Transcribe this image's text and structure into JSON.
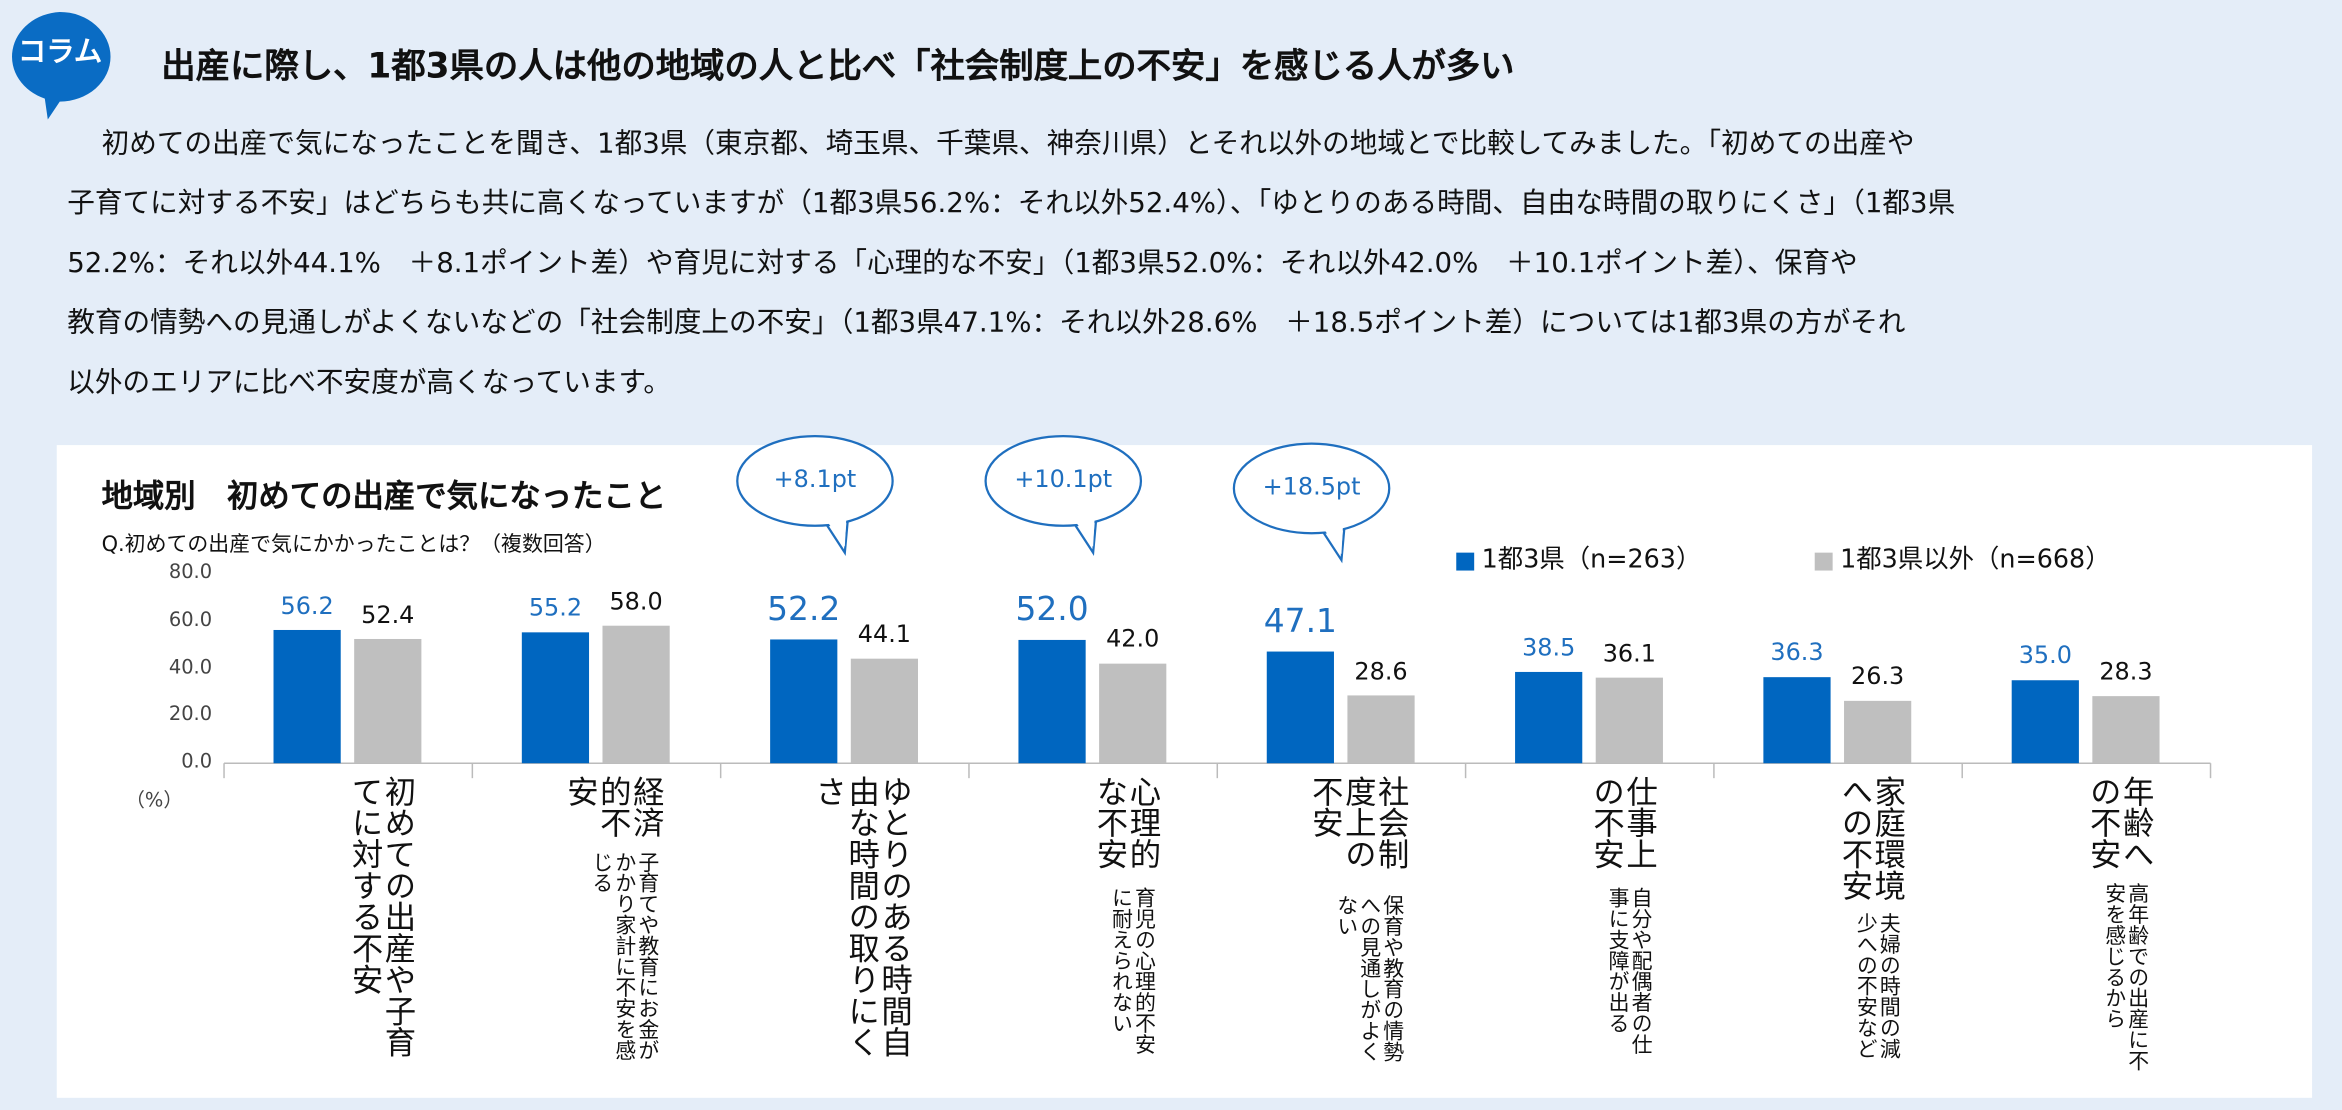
{
  "header": {
    "badge": "コラム",
    "title": "出産に際し、1都3県の人は他の地域の人と比べ「社会制度上の不安」を感じる人が多い",
    "paragraph": [
      "初めての出産で気になったことを聞き、1都3県（東京都、埼玉県、千葉県、神奈川県）とそれ以外の地域とで比較してみました。「初めての出産や",
      "子育てに対する不安」はどちらも共に高くなっていますが（1都3県56.2%：それ以外52.4%）、「ゆとりのある時間、自由な時間の取りにくさ」（1都3県",
      "52.2%：それ以外44.1%　＋8.1ポイント差）や育児に対する「心理的な不安」（1都3県52.0%：それ以外42.0%　＋10.1ポイント差）、保育や",
      "教育の情勢への見通しがよくないなどの「社会制度上の不安」（1都3県47.1%：それ以外28.6%　＋18.5ポイント差）については1都3県の方がそれ",
      "以外のエリアに比べ不安度が高くなっています。"
    ]
  },
  "chart_data": {
    "type": "bar",
    "title": "地域別　初めての出産で気になったこと",
    "subtitle": "Q.初めての出産で気にかかったことは？（複数回答）",
    "unit": "（%）",
    "categories": [
      "初めての出産や子育てに対する不安",
      "経済的不安",
      "ゆとりのある時間自由な時間の取りにくさ",
      "心理的な不安",
      "社会制度上の不安",
      "仕事上の不安",
      "家庭環境への不安",
      "年齢への不安"
    ],
    "category_notes": [
      null,
      "子育てや教育にお金がかかり家計に不安を感じる",
      null,
      "育児の心理的不安に耐えられない",
      "保育や教育の情勢への見通しがよくない",
      "自分や配偶者の仕事に支障が出る",
      "夫婦の時間の減少への不安など",
      "高年齢での出産に不安を感じるから"
    ],
    "series": [
      {
        "name": "1都3県（n=263）",
        "color": "#0066c0",
        "label_color": "#1f6fbf",
        "values": [
          56.2,
          55.2,
          52.2,
          52.0,
          47.1,
          38.5,
          36.3,
          35.0
        ],
        "value_labels": [
          "56.2",
          "55.2",
          "52.2",
          "52.0",
          "47.1",
          "38.5",
          "36.3",
          "35.0"
        ]
      },
      {
        "name": "1都3県以外（n=668）",
        "color": "#bfbfbf",
        "label_color": "#111111",
        "values": [
          52.4,
          58.0,
          44.1,
          42.0,
          28.6,
          36.1,
          26.3,
          28.3
        ],
        "value_labels": [
          "52.4",
          "58.0",
          "44.1",
          "42.0",
          "28.6",
          "36.1",
          "26.3",
          "28.3"
        ]
      }
    ],
    "ylim": [
      0,
      80
    ],
    "yticks": [
      {
        "value": 0,
        "label": "0.0"
      },
      {
        "value": 20,
        "label": "20.0"
      },
      {
        "value": 40,
        "label": "40.0"
      },
      {
        "value": 60,
        "label": "60.0"
      },
      {
        "value": 80,
        "label": "80.0"
      }
    ],
    "grid": false,
    "annotations": [
      "+8.1pt",
      "+10.1pt",
      "+18.5pt"
    ]
  }
}
